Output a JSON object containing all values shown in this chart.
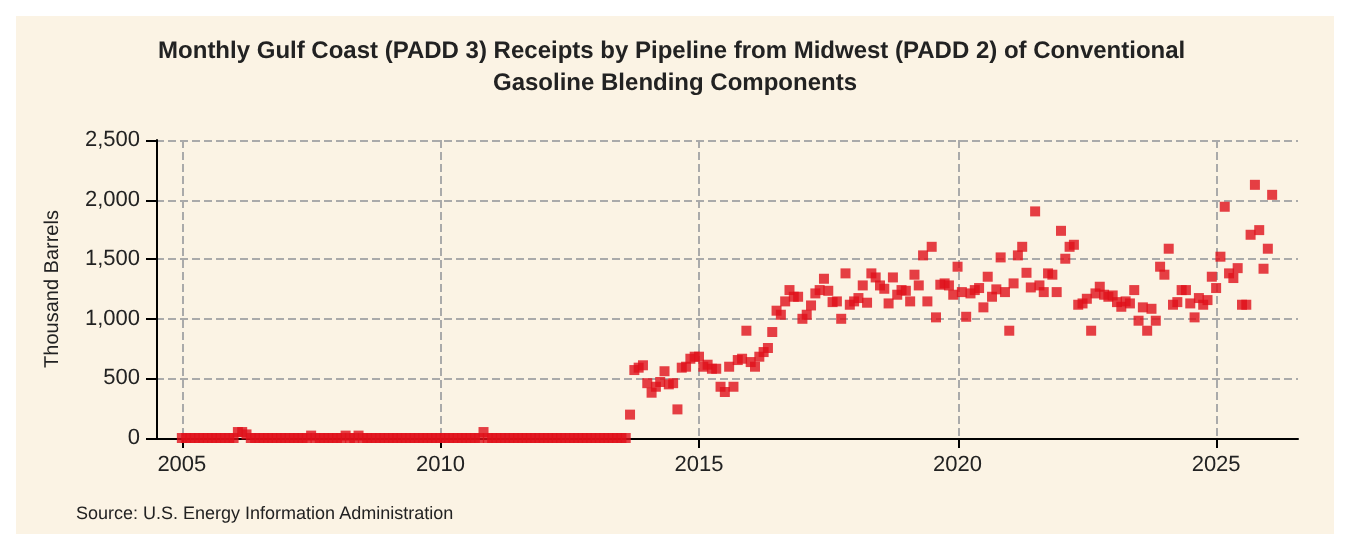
{
  "chart_data": {
    "type": "scatter",
    "title": "Monthly Gulf Coast (PADD 3) Receipts by Pipeline from Midwest (PADD 2) of Conventional Gasoline Blending Components",
    "ylabel": "Thousand Barrels",
    "annotations": [
      "Source: U.S. Energy Information Administration"
    ],
    "x": [
      "2005-01",
      "2005-02",
      "2005-03",
      "2005-04",
      "2005-05",
      "2005-06",
      "2005-07",
      "2005-08",
      "2005-09",
      "2005-10",
      "2005-11",
      "2005-12",
      "2006-01",
      "2006-02",
      "2006-03",
      "2006-04",
      "2006-05",
      "2006-06",
      "2006-07",
      "2006-08",
      "2006-09",
      "2006-10",
      "2006-11",
      "2006-12",
      "2007-01",
      "2007-02",
      "2007-03",
      "2007-04",
      "2007-05",
      "2007-06",
      "2007-07",
      "2007-08",
      "2007-09",
      "2007-10",
      "2007-11",
      "2007-12",
      "2008-01",
      "2008-02",
      "2008-03",
      "2008-04",
      "2008-05",
      "2008-06",
      "2008-07",
      "2008-08",
      "2008-09",
      "2008-10",
      "2008-11",
      "2008-12",
      "2009-01",
      "2009-02",
      "2009-03",
      "2009-04",
      "2009-05",
      "2009-06",
      "2009-07",
      "2009-08",
      "2009-09",
      "2009-10",
      "2009-11",
      "2009-12",
      "2010-01",
      "2010-02",
      "2010-03",
      "2010-04",
      "2010-05",
      "2010-06",
      "2010-07",
      "2010-08",
      "2010-09",
      "2010-10",
      "2010-11",
      "2010-12",
      "2011-01",
      "2011-02",
      "2011-03",
      "2011-04",
      "2011-05",
      "2011-06",
      "2011-07",
      "2011-08",
      "2011-09",
      "2011-10",
      "2011-11",
      "2011-12",
      "2012-01",
      "2012-02",
      "2012-03",
      "2012-04",
      "2012-05",
      "2012-06",
      "2012-07",
      "2012-08",
      "2012-09",
      "2012-10",
      "2012-11",
      "2012-12",
      "2013-01",
      "2013-02",
      "2013-03",
      "2013-04",
      "2013-05",
      "2013-06",
      "2013-07",
      "2013-08",
      "2013-09",
      "2013-10",
      "2013-11",
      "2013-12",
      "2014-01",
      "2014-02",
      "2014-03",
      "2014-04",
      "2014-05",
      "2014-06",
      "2014-07",
      "2014-08",
      "2014-09",
      "2014-10",
      "2014-11",
      "2014-12",
      "2015-01",
      "2015-02",
      "2015-03",
      "2015-04",
      "2015-05",
      "2015-06",
      "2015-07",
      "2015-08",
      "2015-09",
      "2015-10",
      "2015-11",
      "2015-12",
      "2016-01",
      "2016-02",
      "2016-03",
      "2016-04",
      "2016-05",
      "2016-06",
      "2016-07",
      "2016-08",
      "2016-09",
      "2016-10",
      "2016-11",
      "2016-12",
      "2017-01",
      "2017-02",
      "2017-03",
      "2017-04",
      "2017-05",
      "2017-06",
      "2017-07",
      "2017-08",
      "2017-09",
      "2017-10",
      "2017-11",
      "2017-12",
      "2018-01",
      "2018-02",
      "2018-03",
      "2018-04",
      "2018-05",
      "2018-06",
      "2018-07",
      "2018-08",
      "2018-09",
      "2018-10",
      "2018-11",
      "2018-12",
      "2019-01",
      "2019-02",
      "2019-03",
      "2019-04",
      "2019-05",
      "2019-06",
      "2019-07",
      "2019-08",
      "2019-09",
      "2019-10",
      "2019-11",
      "2019-12",
      "2020-01",
      "2020-02",
      "2020-03",
      "2020-04",
      "2020-05",
      "2020-06",
      "2020-07",
      "2020-08",
      "2020-09",
      "2020-10",
      "2020-11",
      "2020-12",
      "2021-01",
      "2021-02",
      "2021-03",
      "2021-04",
      "2021-05",
      "2021-06",
      "2021-07",
      "2021-08",
      "2021-09",
      "2021-10",
      "2021-11",
      "2021-12",
      "2022-01",
      "2022-02",
      "2022-03",
      "2022-04",
      "2022-05",
      "2022-06",
      "2022-07",
      "2022-08",
      "2022-09",
      "2022-10",
      "2022-11",
      "2022-12",
      "2023-01",
      "2023-02",
      "2023-03",
      "2023-04",
      "2023-05",
      "2023-06",
      "2023-07",
      "2023-08",
      "2023-09",
      "2023-10",
      "2023-11",
      "2023-12",
      "2024-01",
      "2024-02",
      "2024-03",
      "2024-04",
      "2024-05",
      "2024-06",
      "2024-07",
      "2024-08",
      "2024-09",
      "2024-10",
      "2024-11",
      "2024-12",
      "2025-01",
      "2025-02",
      "2025-03",
      "2025-04",
      "2025-05",
      "2025-06",
      "2025-07",
      "2025-08",
      "2025-09",
      "2025-10",
      "2025-11",
      "2025-12",
      "2026-01",
      "2026-02"
    ],
    "series": [
      {
        "color": "#e0101a",
        "values": [
          0,
          0,
          0,
          0,
          0,
          0,
          0,
          0,
          0,
          0,
          0,
          0,
          0,
          50,
          50,
          30,
          0,
          0,
          0,
          0,
          0,
          0,
          0,
          0,
          0,
          0,
          0,
          0,
          0,
          0,
          20,
          0,
          0,
          0,
          0,
          0,
          0,
          0,
          20,
          0,
          0,
          20,
          0,
          0,
          0,
          0,
          0,
          0,
          0,
          0,
          0,
          0,
          0,
          0,
          0,
          0,
          0,
          0,
          0,
          0,
          0,
          0,
          0,
          0,
          0,
          0,
          0,
          0,
          0,
          0,
          50,
          0,
          0,
          0,
          0,
          0,
          0,
          0,
          0,
          0,
          0,
          0,
          0,
          0,
          0,
          0,
          0,
          0,
          0,
          0,
          0,
          0,
          0,
          0,
          0,
          0,
          0,
          0,
          0,
          0,
          0,
          0,
          0,
          0,
          196,
          570,
          590,
          610,
          460,
          380,
          430,
          470,
          560,
          450,
          460,
          240,
          590,
          598,
          665,
          682,
          682,
          598,
          615,
          581,
          581,
          430,
          386,
          598,
          430,
          654,
          665,
          900,
          637,
          598,
          682,
          721,
          755,
          889,
          1068,
          1034,
          1146,
          1241,
          1185,
          1185,
          1000,
          1034,
          1112,
          1213,
          1241,
          1336,
          1235,
          1140,
          1146,
          1000,
          1381,
          1118,
          1146,
          1174,
          1280,
          1135,
          1381,
          1347,
          1280,
          1252,
          1129,
          1347,
          1202,
          1241,
          1235,
          1146,
          1370,
          1280,
          1532,
          1146,
          1604,
          1012,
          1286,
          1297,
          1280,
          1202,
          1437,
          1224,
          1017,
          1213,
          1241,
          1258,
          1096,
          1353,
          1185,
          1247,
          1515,
          1224,
          900,
          1297,
          1532,
          1604,
          1386,
          1263,
          1901,
          1280,
          1224,
          1381,
          1370,
          1224,
          1738,
          1504,
          1604,
          1621,
          1118,
          1129,
          1168,
          900,
          1213,
          1269,
          1202,
          1185,
          1196,
          1140,
          1101,
          1146,
          1129,
          1241,
          984,
          1096,
          900,
          1084,
          984,
          1437,
          1370,
          1588,
          1118,
          1140,
          1241,
          1241,
          1129,
          1012,
          1174,
          1118,
          1157,
          1353,
          1258,
          1521,
          1940,
          1381,
          1342,
          1425,
          1118,
          1118,
          1705,
          2124,
          1744,
          1420,
          1588,
          2040
        ]
      }
    ],
    "xlim": [
      "2004-07",
      "2026-08"
    ],
    "xticks": [
      "2005",
      "2010",
      "2015",
      "2020",
      "2025"
    ],
    "ylim": [
      0,
      2500
    ],
    "yticks": [
      0,
      500,
      {
        "value": 1000,
        "label": "1,000"
      },
      {
        "value": 1500,
        "label": "1,500"
      },
      {
        "value": 2000,
        "label": "2,000"
      },
      {
        "value": 2500,
        "label": "2,500"
      }
    ],
    "grid": true,
    "marker": "square"
  }
}
